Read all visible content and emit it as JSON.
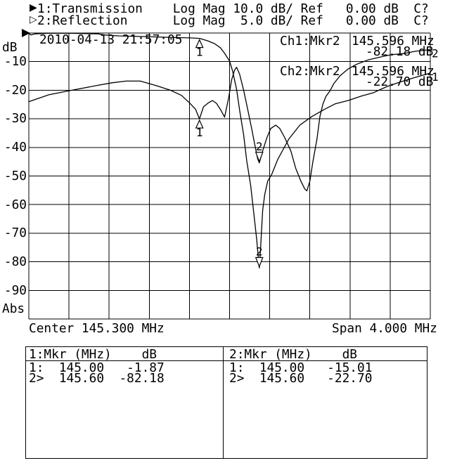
{
  "header": {
    "line1_text": "1:Transmission    Log Mag 10.0 dB/ Ref   0.00 dB  C?",
    "line2_text": "2:Reflection      Log Mag  5.0 dB/ Ref   0.00 dB  C?",
    "arrow1": "▶",
    "arrow2": "▷"
  },
  "channels": [
    {
      "num": "1",
      "name": "Transmission",
      "format": "Log Mag",
      "scale": "10.0 dB/",
      "ref": "0.00 dB",
      "status": "C?"
    },
    {
      "num": "2",
      "name": "Reflection",
      "format": "Log Mag",
      "scale": "5.0 dB/",
      "ref": "0.00 dB",
      "status": "C?"
    }
  ],
  "timestamp": "2010-04-13 21:57:05",
  "readouts": [
    {
      "channel": "Ch1:Mkr2",
      "freq": "145.596 MHz",
      "level": "-82.18 dB"
    },
    {
      "channel": "Ch2:Mkr2",
      "freq": "145.596 MHz",
      "level": "-22.70 dB"
    }
  ],
  "axis": {
    "unit_label": "dB",
    "bottom_label": "Abs",
    "ticks": [
      "-10",
      "-20",
      "-30",
      "-40",
      "-50",
      "-60",
      "-70",
      "-80",
      "-90"
    ]
  },
  "footer": {
    "center": "Center 145.300 MHz",
    "span": "Span 4.000 MHz"
  },
  "marker_table": {
    "left": {
      "header": "1:Mkr (MHz)    dB",
      "row1": "1:  145.00   -1.87",
      "row2": "2>  145.60  -82.18"
    },
    "right": {
      "header": "2:Mkr (MHz)    dB",
      "row1": "1:  145.00   -15.01",
      "row2": "2>  145.60   -22.70"
    }
  },
  "chart_data": {
    "type": "line",
    "title": "",
    "xlabel": "Frequency (MHz)",
    "ylabel": "dB",
    "x_axis": {
      "center_MHz": 145.3,
      "span_MHz": 4.0,
      "min_MHz": 143.3,
      "max_MHz": 147.3,
      "divisions": 10
    },
    "y_axis": {
      "ref_dB": 0.0,
      "divisions": 10,
      "tick_labels": [
        "-10",
        "-20",
        "-30",
        "-40",
        "-50",
        "-60",
        "-70",
        "-80",
        "-90"
      ]
    },
    "grid": true,
    "series": [
      {
        "name": "Transmission",
        "channel": 1,
        "dB_per_div": 10,
        "edge_label": "1",
        "points": [
          [
            143.3,
            -0.1
          ],
          [
            143.32,
            -0.7
          ],
          [
            143.36,
            -0.3
          ],
          [
            143.5,
            -0.1
          ],
          [
            143.71,
            -0.1
          ],
          [
            143.99,
            -0.3
          ],
          [
            144.06,
            -0.7
          ],
          [
            144.2,
            -1.0
          ],
          [
            144.41,
            -1.2
          ],
          [
            144.69,
            -1.5
          ],
          [
            144.9,
            -1.7
          ],
          [
            145.0,
            -1.87
          ],
          [
            145.08,
            -2.7
          ],
          [
            145.15,
            -3.7
          ],
          [
            145.21,
            -5.2
          ],
          [
            145.25,
            -7.1
          ],
          [
            145.3,
            -9.8
          ],
          [
            145.33,
            -13.3
          ],
          [
            145.37,
            -19.7
          ],
          [
            145.4,
            -27.0
          ],
          [
            145.44,
            -35.6
          ],
          [
            145.47,
            -44.5
          ],
          [
            145.51,
            -53.3
          ],
          [
            145.54,
            -62.7
          ],
          [
            145.57,
            -72.0
          ],
          [
            145.585,
            -78.0
          ],
          [
            145.596,
            -82.18
          ],
          [
            145.61,
            -74.5
          ],
          [
            145.62,
            -68.0
          ],
          [
            145.63,
            -62.0
          ],
          [
            145.65,
            -56.5
          ],
          [
            145.68,
            -51.8
          ],
          [
            145.72,
            -49.4
          ],
          [
            145.78,
            -44.2
          ],
          [
            145.89,
            -37.1
          ],
          [
            146.0,
            -32.2
          ],
          [
            146.12,
            -29.2
          ],
          [
            146.24,
            -26.8
          ],
          [
            146.35,
            -24.8
          ],
          [
            146.48,
            -23.6
          ],
          [
            146.61,
            -22.1
          ],
          [
            146.73,
            -20.9
          ],
          [
            146.87,
            -18.7
          ],
          [
            147.01,
            -17.0
          ],
          [
            147.15,
            -15.5
          ],
          [
            147.3,
            -14.0
          ]
        ]
      },
      {
        "name": "Reflection",
        "channel": 2,
        "dB_per_div": 5,
        "edge_label": "2",
        "points": [
          [
            143.3,
            -12.0
          ],
          [
            143.5,
            -10.8
          ],
          [
            143.73,
            -10.0
          ],
          [
            143.97,
            -9.2
          ],
          [
            144.13,
            -8.7
          ],
          [
            144.27,
            -8.4
          ],
          [
            144.41,
            -8.4
          ],
          [
            144.57,
            -9.2
          ],
          [
            144.71,
            -10.0
          ],
          [
            144.82,
            -10.9
          ],
          [
            144.9,
            -12.2
          ],
          [
            144.96,
            -13.3
          ],
          [
            145.0,
            -15.01
          ],
          [
            145.04,
            -12.9
          ],
          [
            145.09,
            -12.2
          ],
          [
            145.13,
            -11.8
          ],
          [
            145.17,
            -12.3
          ],
          [
            145.21,
            -13.4
          ],
          [
            145.25,
            -14.7
          ],
          [
            145.29,
            -11.4
          ],
          [
            145.32,
            -8.2
          ],
          [
            145.35,
            -6.5
          ],
          [
            145.37,
            -6.0
          ],
          [
            145.4,
            -7.2
          ],
          [
            145.44,
            -10.0
          ],
          [
            145.48,
            -13.3
          ],
          [
            145.52,
            -16.7
          ],
          [
            145.56,
            -20.3
          ],
          [
            145.58,
            -22.0
          ],
          [
            145.596,
            -22.7
          ],
          [
            145.63,
            -20.6
          ],
          [
            145.67,
            -18.4
          ],
          [
            145.71,
            -16.7
          ],
          [
            145.76,
            -16.1
          ],
          [
            145.8,
            -16.7
          ],
          [
            145.85,
            -18.3
          ],
          [
            145.91,
            -20.6
          ],
          [
            145.96,
            -23.7
          ],
          [
            146.01,
            -25.9
          ],
          [
            146.05,
            -27.3
          ],
          [
            146.07,
            -27.6
          ],
          [
            146.1,
            -25.9
          ],
          [
            146.13,
            -22.5
          ],
          [
            146.17,
            -18.6
          ],
          [
            146.2,
            -14.6
          ],
          [
            146.23,
            -12.4
          ],
          [
            146.26,
            -11.1
          ],
          [
            146.3,
            -10.1
          ],
          [
            146.34,
            -8.8
          ],
          [
            146.4,
            -7.5
          ],
          [
            146.48,
            -6.3
          ],
          [
            146.56,
            -5.5
          ],
          [
            146.68,
            -4.7
          ],
          [
            146.8,
            -4.2
          ],
          [
            146.91,
            -3.8
          ],
          [
            147.03,
            -3.6
          ],
          [
            147.15,
            -3.2
          ],
          [
            147.3,
            -2.9
          ]
        ]
      }
    ],
    "markers": [
      {
        "trace": 1,
        "label": "1",
        "freq_MHz": 145.0,
        "dB": -1.87,
        "orient": "up"
      },
      {
        "trace": 1,
        "label": "2",
        "freq_MHz": 145.596,
        "dB": -82.18,
        "orient": "down"
      },
      {
        "trace": 2,
        "label": "1",
        "freq_MHz": 145.0,
        "dB": -15.01,
        "orient": "up"
      },
      {
        "trace": 2,
        "label": "2",
        "freq_MHz": 145.596,
        "dB": -22.7,
        "orient": "down"
      }
    ],
    "colors": {
      "grid": "#000000",
      "trace": "#000000",
      "background": "#ffffff"
    }
  }
}
